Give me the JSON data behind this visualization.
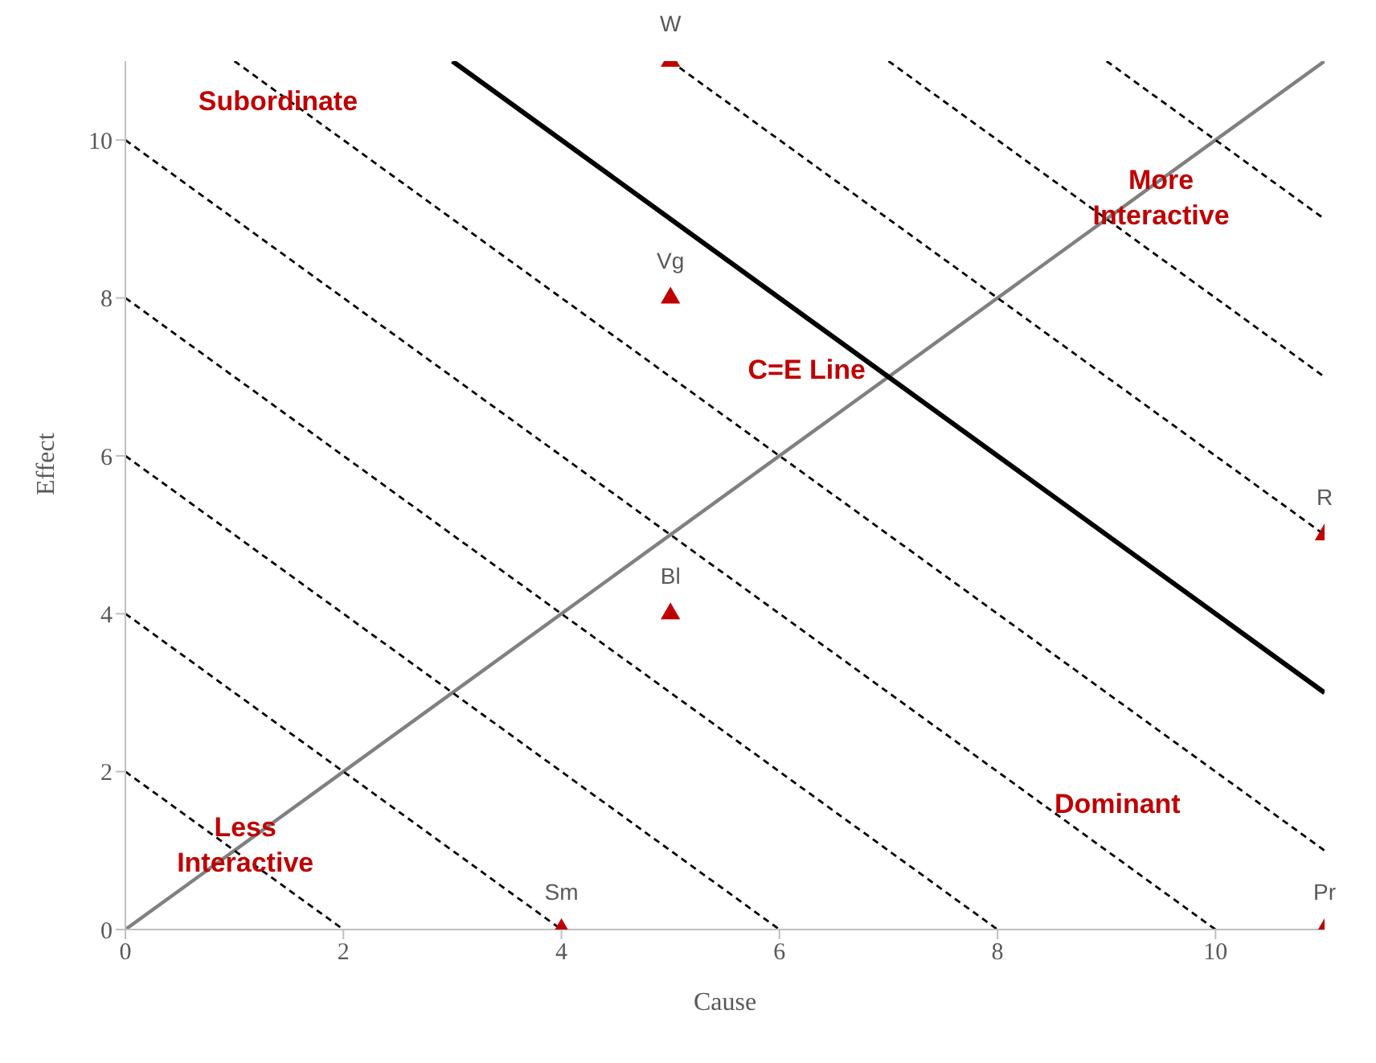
{
  "chart_data": {
    "type": "scatter",
    "xlabel": "Cause",
    "ylabel": "Effect",
    "xlim": [
      0,
      11
    ],
    "ylim": [
      0,
      11
    ],
    "xticks": [
      0,
      2,
      4,
      6,
      8,
      10
    ],
    "yticks": [
      0,
      2,
      4,
      6,
      8,
      10
    ],
    "grid": false,
    "legend": false,
    "marker": "triangle",
    "annotations": [
      "Subordinate",
      "More Interactive",
      "C=E Line",
      "Less Interactive",
      "Dominant"
    ],
    "series": [
      {
        "type": "line",
        "marker": "none",
        "color": "#808080",
        "line_style": "solid",
        "x": [
          0,
          11
        ],
        "values": [
          0,
          11
        ]
      },
      {
        "type": "line",
        "marker": "none",
        "color": "#000000",
        "line_style": "solid",
        "x": [
          3,
          11
        ],
        "values": [
          11,
          3
        ]
      },
      {
        "type": "line",
        "marker": "none",
        "color": "#000000",
        "line_style": "dashed",
        "x": [
          0,
          2
        ],
        "values": [
          2,
          0
        ]
      },
      {
        "type": "line",
        "marker": "none",
        "color": "#000000",
        "line_style": "dashed",
        "x": [
          0,
          4
        ],
        "values": [
          4,
          0
        ]
      },
      {
        "type": "line",
        "marker": "none",
        "color": "#000000",
        "line_style": "dashed",
        "x": [
          0,
          6
        ],
        "values": [
          6,
          0
        ]
      },
      {
        "type": "line",
        "marker": "none",
        "color": "#000000",
        "line_style": "dashed",
        "x": [
          0,
          8
        ],
        "values": [
          8,
          0
        ]
      },
      {
        "type": "line",
        "marker": "none",
        "color": "#000000",
        "line_style": "dashed",
        "x": [
          0,
          10
        ],
        "values": [
          10,
          0
        ]
      },
      {
        "type": "line",
        "marker": "none",
        "color": "#000000",
        "line_style": "dashed",
        "x": [
          1,
          11
        ],
        "values": [
          11,
          1
        ]
      },
      {
        "type": "line",
        "marker": "none",
        "color": "#000000",
        "line_style": "dashed",
        "x": [
          5,
          11
        ],
        "values": [
          11,
          5
        ]
      },
      {
        "type": "line",
        "marker": "none",
        "color": "#000000",
        "line_style": "dashed",
        "x": [
          7,
          11
        ],
        "values": [
          11,
          7
        ]
      },
      {
        "type": "line",
        "marker": "none",
        "color": "#000000",
        "line_style": "dashed",
        "x": [
          9,
          11
        ],
        "values": [
          11,
          9
        ]
      },
      {
        "name": "W",
        "color": "#c00000",
        "x": [
          5
        ],
        "values": [
          11
        ]
      },
      {
        "name": "Vg",
        "color": "#c00000",
        "x": [
          5
        ],
        "values": [
          8
        ]
      },
      {
        "name": "Bl",
        "color": "#c00000",
        "x": [
          5
        ],
        "values": [
          4
        ]
      },
      {
        "name": "Sm",
        "color": "#c00000",
        "x": [
          4
        ],
        "values": [
          0
        ]
      },
      {
        "name": "R",
        "color": "#c00000",
        "x": [
          11
        ],
        "values": [
          5
        ]
      },
      {
        "name": "Pr",
        "color": "#c00000",
        "x": [
          11
        ],
        "values": [
          0
        ]
      }
    ]
  }
}
